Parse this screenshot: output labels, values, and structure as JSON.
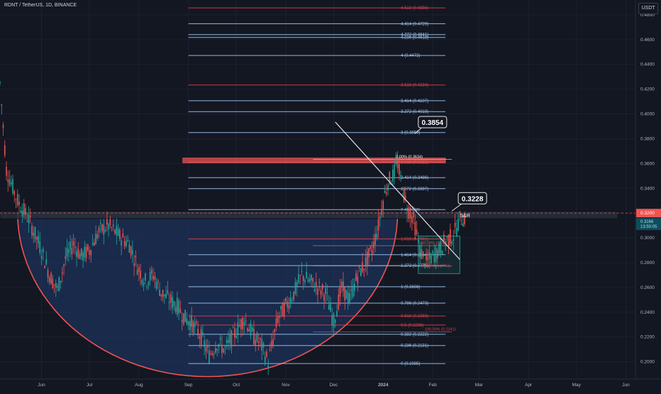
{
  "header": {
    "symbol_line": "RDNT / TetherUS, 1D, BINANCE",
    "currency": "USDT"
  },
  "colors": {
    "background": "#131722",
    "up": "#26a69a",
    "down": "#ef5350",
    "fib_blue": "#9ec8f0",
    "fib_red": "#e0404a",
    "cup_fill": "#1f3a6e"
  },
  "chart_data": {
    "type": "candlestick",
    "title": "RDNT / TetherUS, 1D, BINANCE",
    "ylim": [
      0.186,
      0.492
    ],
    "y_ticks": [
      "0.4800",
      "0.4600",
      "0.4400",
      "0.4200",
      "0.4000",
      "0.3800",
      "0.3600",
      "0.3400",
      "0.3200",
      "0.3000",
      "0.2800",
      "0.2600",
      "0.2400",
      "0.2200",
      "0.2000"
    ],
    "y_tick_values": [
      0.48,
      0.46,
      0.44,
      0.42,
      0.4,
      0.38,
      0.36,
      0.34,
      0.32,
      0.3,
      0.28,
      0.26,
      0.24,
      0.22,
      0.2
    ],
    "x_ticks": [
      "Jun",
      "Jul",
      "Aug",
      "Sep",
      "Oct",
      "Nov",
      "Dec",
      "2024",
      "Feb",
      "Mar",
      "Apr",
      "May",
      "Jun"
    ],
    "x_tick_days": [
      0,
      30,
      61,
      92,
      122,
      153,
      183,
      214,
      245,
      274,
      305,
      335,
      366
    ],
    "xlim_days": [
      -26,
      372
    ],
    "price_path_days": [
      -26,
      -22,
      -15,
      -8,
      0,
      5,
      10,
      15,
      20,
      25,
      30,
      36,
      42,
      50,
      55,
      60,
      65,
      70,
      75,
      80,
      85,
      90,
      95,
      100,
      105,
      110,
      115,
      122,
      127,
      133,
      137,
      142,
      148,
      153,
      158,
      163,
      168,
      173,
      178,
      183,
      188,
      193,
      198,
      203,
      207,
      211,
      214,
      217,
      220,
      223,
      226,
      229,
      233,
      237,
      241,
      245,
      249,
      253,
      258,
      262,
      265
    ],
    "price_path_values": [
      0.425,
      0.355,
      0.33,
      0.315,
      0.29,
      0.27,
      0.258,
      0.283,
      0.295,
      0.285,
      0.29,
      0.305,
      0.31,
      0.3,
      0.295,
      0.277,
      0.265,
      0.27,
      0.256,
      0.25,
      0.245,
      0.235,
      0.23,
      0.22,
      0.205,
      0.215,
      0.21,
      0.225,
      0.235,
      0.22,
      0.215,
      0.2,
      0.235,
      0.245,
      0.255,
      0.27,
      0.265,
      0.26,
      0.255,
      0.232,
      0.26,
      0.25,
      0.27,
      0.28,
      0.29,
      0.31,
      0.33,
      0.345,
      0.35,
      0.36,
      0.34,
      0.325,
      0.315,
      0.29,
      0.28,
      0.285,
      0.29,
      0.298,
      0.302,
      0.315,
      0.316
    ],
    "current_price": "0.3200",
    "current_price_value": 0.32,
    "sub_price": "0.3166",
    "countdown": "13:50:05",
    "fib_extension": [
      {
        "label": "0 (0.1985)",
        "value": 0.1985,
        "color": "blue"
      },
      {
        "label": "0.236 (0.2131)",
        "value": 0.2131,
        "color": "blue"
      },
      {
        "label": "0.382 (0.2222)",
        "value": 0.2222,
        "color": "blue"
      },
      {
        "label": "0.5 (0.2296)",
        "value": 0.2296,
        "color": "red"
      },
      {
        "label": "0.618 (0.2369)",
        "value": 0.2369,
        "color": "red"
      },
      {
        "label": "0.786 (0.2473)",
        "value": 0.2473,
        "color": "blue"
      },
      {
        "label": "1 (0.2606)",
        "value": 0.2606,
        "color": "blue"
      },
      {
        "label": "1.272 (0.2776)",
        "value": 0.2776,
        "color": "blue"
      },
      {
        "label": "1.414 (0.2864)",
        "value": 0.2864,
        "color": "blue"
      },
      {
        "label": "1.618 (0.2991)",
        "value": 0.2991,
        "color": "red"
      },
      {
        "label": "2 (0.3228)",
        "value": 0.3228,
        "color": "blue"
      },
      {
        "label": "2.272 (0.3397)",
        "value": 0.3397,
        "color": "blue"
      },
      {
        "label": "2.414 (0.3486)",
        "value": 0.3486,
        "color": "blue"
      },
      {
        "label": "2.618 (0.3612)",
        "value": 0.3612,
        "color": "red"
      },
      {
        "label": "3 (0.3850)",
        "value": 0.385,
        "color": "blue"
      },
      {
        "label": "3.272 (0.4019)",
        "value": 0.4019,
        "color": "blue"
      },
      {
        "label": "3.414 (0.4107)",
        "value": 0.4107,
        "color": "blue"
      },
      {
        "label": "3.618 (0.4234)",
        "value": 0.4234,
        "color": "red"
      },
      {
        "label": "4 (0.4472)",
        "value": 0.4472,
        "color": "blue"
      },
      {
        "label": "4.236 (0.4618)",
        "value": 0.4618,
        "color": "blue"
      },
      {
        "label": "4.272 (0.4641)",
        "value": 0.4641,
        "color": "blue"
      },
      {
        "label": "4.414 (0.4729)",
        "value": 0.4729,
        "color": "blue"
      },
      {
        "label": "4.618 (0.4856)",
        "value": 0.4856,
        "color": "red"
      }
    ],
    "fib_retracement": [
      {
        "label": "0.00% (0.3634)",
        "value": 0.3634
      },
      {
        "label": "50.00% (0.2937)",
        "value": 0.2937
      },
      {
        "label": "61.80% (0.2773)",
        "value": 0.2773
      },
      {
        "label": "100.00% (0.2241)",
        "value": 0.2241
      }
    ],
    "annotations": {
      "target_high": "0.3854",
      "target_high_value": 0.3854,
      "target_mid": "0.3228",
      "target_mid_value": 0.3228,
      "sr_label": "S&R",
      "sr_zone": [
        0.3155,
        0.3215
      ],
      "resistance_zone": [
        0.3605,
        0.3645
      ]
    }
  }
}
